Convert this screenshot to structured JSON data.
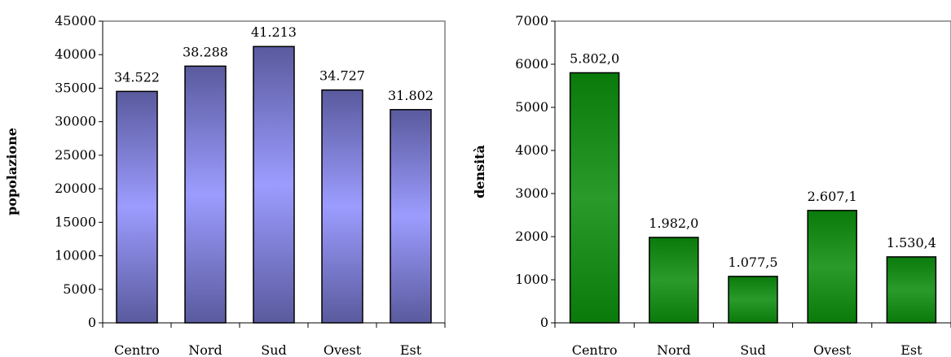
{
  "chart_data": [
    {
      "type": "bar",
      "categories": [
        "Centro",
        "Nord",
        "Sud",
        "Ovest",
        "Est"
      ],
      "values": [
        34522,
        38288,
        41213,
        34727,
        31802
      ],
      "data_labels": [
        "34.522",
        "38.288",
        "41.213",
        "34.727",
        "31.802"
      ],
      "xlabel": "",
      "ylabel": "popolazione",
      "ylim": [
        0,
        45000
      ],
      "yticks": [
        0,
        5000,
        10000,
        15000,
        20000,
        25000,
        30000,
        35000,
        40000,
        45000
      ],
      "grid": false,
      "colors": {
        "bar_light": "#9c9cff",
        "bar_dark": "#5a5a9e",
        "edge": "#000000",
        "frame": "#808080"
      }
    },
    {
      "type": "bar",
      "categories": [
        "Centro",
        "Nord",
        "Sud",
        "Ovest",
        "Est"
      ],
      "values": [
        5802.0,
        1982.0,
        1077.5,
        2607.1,
        1530.4
      ],
      "data_labels": [
        "5.802,0",
        "1.982,0",
        "1.077,5",
        "2.607,1",
        "1.530,4"
      ],
      "xlabel": "",
      "ylabel": "densità",
      "ylim": [
        0,
        7000
      ],
      "yticks": [
        0,
        1000,
        2000,
        3000,
        4000,
        5000,
        6000,
        7000
      ],
      "grid": false,
      "colors": {
        "bar_light": "#2a9a2a",
        "bar_dark": "#0a7a0a",
        "edge": "#000000",
        "frame": "#808080"
      }
    }
  ]
}
